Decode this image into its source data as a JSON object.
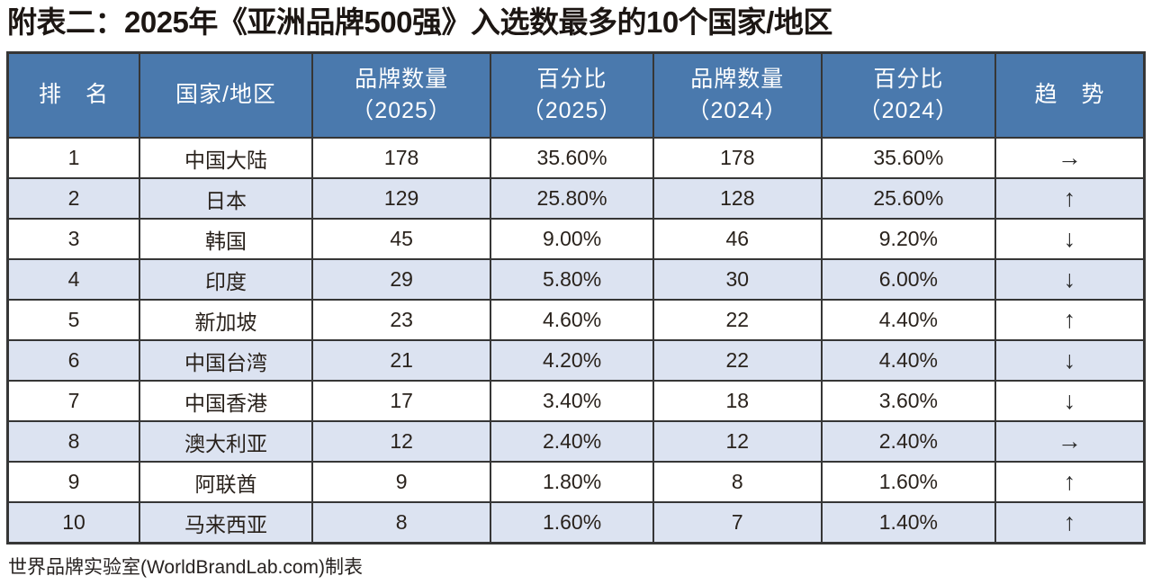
{
  "title": "附表二：2025年《亚洲品牌500强》入选数最多的10个国家/地区",
  "footer": "世界品牌实验室(WorldBrandLab.com)制表",
  "colors": {
    "header_bg": "#4a79ad",
    "header_text": "#ffffff",
    "row_bg": "#ffffff",
    "row_alt_bg": "#dce3f1",
    "border": "#363636",
    "text": "#29221c"
  },
  "table": {
    "columns": [
      {
        "key": "rank",
        "label": "排　名"
      },
      {
        "key": "country",
        "label": "国家/地区"
      },
      {
        "key": "brands_2025",
        "label": "品牌数量\n（2025）"
      },
      {
        "key": "pct_2025",
        "label": "百分比\n（2025）"
      },
      {
        "key": "brands_2024",
        "label": "品牌数量\n（2024）"
      },
      {
        "key": "pct_2024",
        "label": "百分比\n（2024）"
      },
      {
        "key": "trend",
        "label": "趋　势"
      }
    ],
    "rows": [
      {
        "rank": "1",
        "country": "中国大陆",
        "brands_2025": "178",
        "pct_2025": "35.60%",
        "brands_2024": "178",
        "pct_2024": "35.60%",
        "trend_glyph": "→",
        "trend_icon": "right-arrow-icon"
      },
      {
        "rank": "2",
        "country": "日本",
        "brands_2025": "129",
        "pct_2025": "25.80%",
        "brands_2024": "128",
        "pct_2024": "25.60%",
        "trend_glyph": "↑",
        "trend_icon": "up-arrow-icon"
      },
      {
        "rank": "3",
        "country": "韩国",
        "brands_2025": "45",
        "pct_2025": "9.00%",
        "brands_2024": "46",
        "pct_2024": "9.20%",
        "trend_glyph": "↓",
        "trend_icon": "down-arrow-icon"
      },
      {
        "rank": "4",
        "country": "印度",
        "brands_2025": "29",
        "pct_2025": "5.80%",
        "brands_2024": "30",
        "pct_2024": "6.00%",
        "trend_glyph": "↓",
        "trend_icon": "down-arrow-icon"
      },
      {
        "rank": "5",
        "country": "新加坡",
        "brands_2025": "23",
        "pct_2025": "4.60%",
        "brands_2024": "22",
        "pct_2024": "4.40%",
        "trend_glyph": "↑",
        "trend_icon": "up-arrow-icon"
      },
      {
        "rank": "6",
        "country": "中国台湾",
        "brands_2025": "21",
        "pct_2025": "4.20%",
        "brands_2024": "22",
        "pct_2024": "4.40%",
        "trend_glyph": "↓",
        "trend_icon": "down-arrow-icon"
      },
      {
        "rank": "7",
        "country": "中国香港",
        "brands_2025": "17",
        "pct_2025": "3.40%",
        "brands_2024": "18",
        "pct_2024": "3.60%",
        "trend_glyph": "↓",
        "trend_icon": "down-arrow-icon"
      },
      {
        "rank": "8",
        "country": "澳大利亚",
        "brands_2025": "12",
        "pct_2025": "2.40%",
        "brands_2024": "12",
        "pct_2024": "2.40%",
        "trend_glyph": "→",
        "trend_icon": "right-arrow-icon"
      },
      {
        "rank": "9",
        "country": "阿联酋",
        "brands_2025": "9",
        "pct_2025": "1.80%",
        "brands_2024": "8",
        "pct_2024": "1.60%",
        "trend_glyph": "↑",
        "trend_icon": "up-arrow-icon"
      },
      {
        "rank": "10",
        "country": "马来西亚",
        "brands_2025": "8",
        "pct_2025": "1.60%",
        "brands_2024": "7",
        "pct_2024": "1.40%",
        "trend_glyph": "↑",
        "trend_icon": "up-arrow-icon"
      }
    ]
  }
}
